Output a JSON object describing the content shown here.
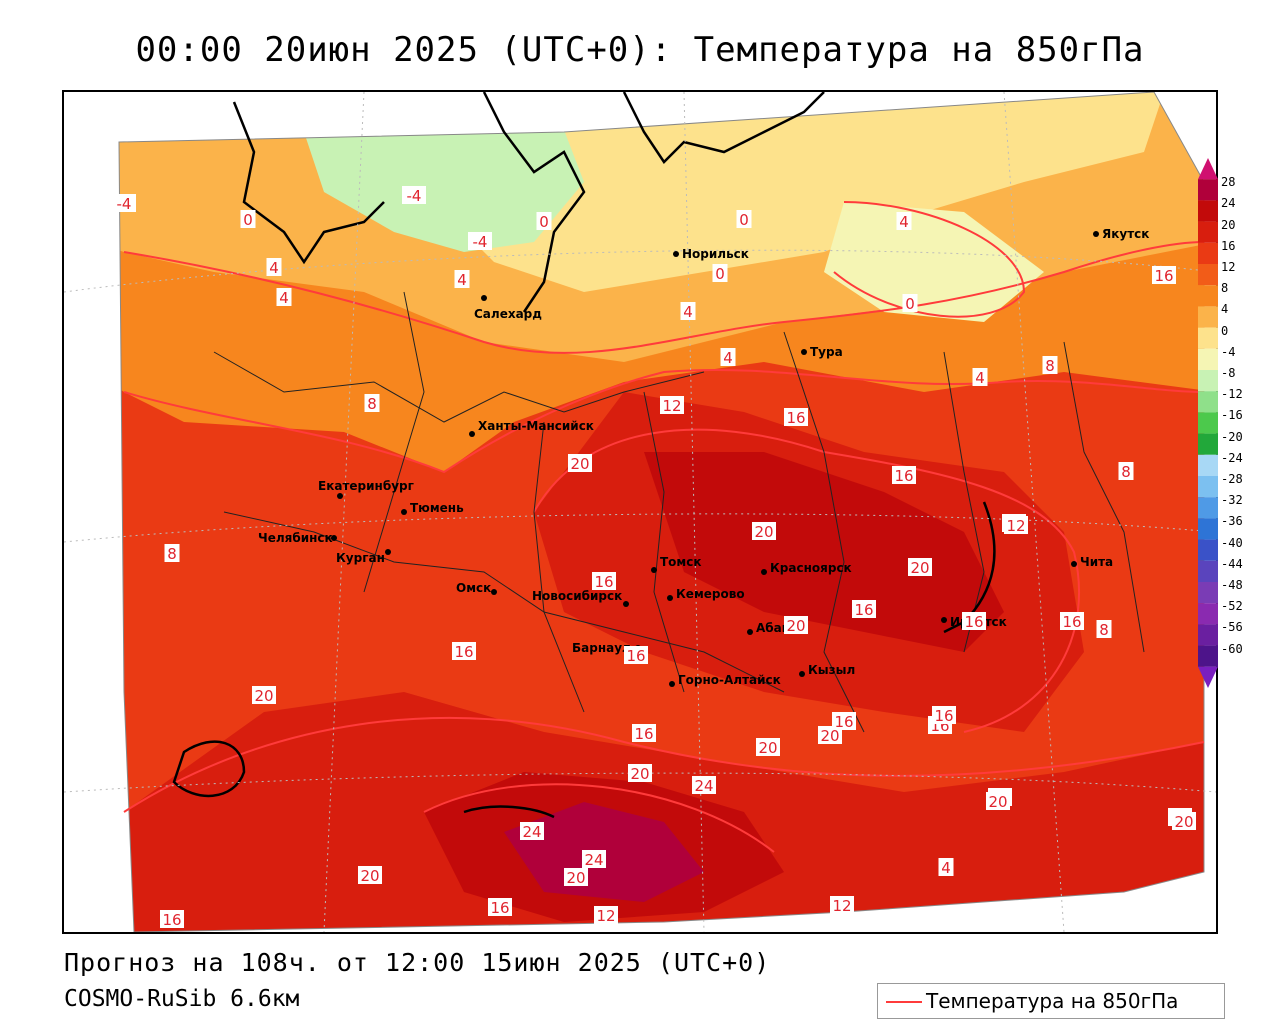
{
  "title": "00:00 20июн 2025 (UTC+0): Температура на 850гПа",
  "forecast_line": "Прогноз на 108ч. от 12:00 15июн 2025 (UTC+0)",
  "model_line": "COSMO-RuSib 6.6км",
  "legend": {
    "label": "Температура на 850гПа",
    "line_color": "#ff3b3b"
  },
  "colorbar": {
    "labels": [
      "28",
      "24",
      "20",
      "16",
      "12",
      "8",
      "4",
      "0",
      "-4",
      "-8",
      "-12",
      "-16",
      "-20",
      "-24",
      "-28",
      "-32",
      "-36",
      "-40",
      "-44",
      "-48",
      "-52",
      "-56",
      "-60"
    ],
    "colors": [
      "#b0003a",
      "#c20a0a",
      "#d81e0e",
      "#ea3a14",
      "#f25c18",
      "#f7861e",
      "#fbb34a",
      "#fde28c",
      "#f5f5b4",
      "#c8f2b4",
      "#8fe08a",
      "#4cc94c",
      "#22a83a",
      "#a8d8f5",
      "#7cc0f0",
      "#4f9ae6",
      "#2e74d6",
      "#3a52c8",
      "#5a44bd",
      "#7a3cb5",
      "#8a2ab0",
      "#6a1fa0",
      "#4d148a"
    ]
  },
  "cities": [
    {
      "name": "Норильск"
    },
    {
      "name": "Якутск"
    },
    {
      "name": "Салехард"
    },
    {
      "name": "Тура"
    },
    {
      "name": "Ханты-Мансийск"
    },
    {
      "name": "Екатеринбург"
    },
    {
      "name": "Тюмень"
    },
    {
      "name": "Челябинск"
    },
    {
      "name": "Курган"
    },
    {
      "name": "Омск"
    },
    {
      "name": "Томск"
    },
    {
      "name": "Красноярск"
    },
    {
      "name": "Новосибирск"
    },
    {
      "name": "Кемерово"
    },
    {
      "name": "Абакан"
    },
    {
      "name": "Иркутск"
    },
    {
      "name": "Чита"
    },
    {
      "name": "Барнаул"
    },
    {
      "name": "Горно-Алтайск"
    },
    {
      "name": "Кызыл"
    }
  ],
  "contour_labels": [
    "-4",
    "0",
    "-4",
    "4",
    "-4",
    "0",
    "4",
    "4",
    "4",
    "0",
    "4",
    "0",
    "0",
    "4",
    "4",
    "8",
    "8",
    "16",
    "12",
    "16",
    "20",
    "20",
    "16",
    "12",
    "16",
    "20",
    "20",
    "24",
    "24",
    "24",
    "20",
    "20",
    "16",
    "16",
    "12",
    "12",
    "8",
    "8",
    "16",
    "20",
    "16",
    "16",
    "20",
    "20",
    "20",
    "16",
    "16",
    "16",
    "4",
    "12",
    "8",
    "12",
    "16",
    "16",
    "16",
    "20",
    "16",
    "20"
  ]
}
